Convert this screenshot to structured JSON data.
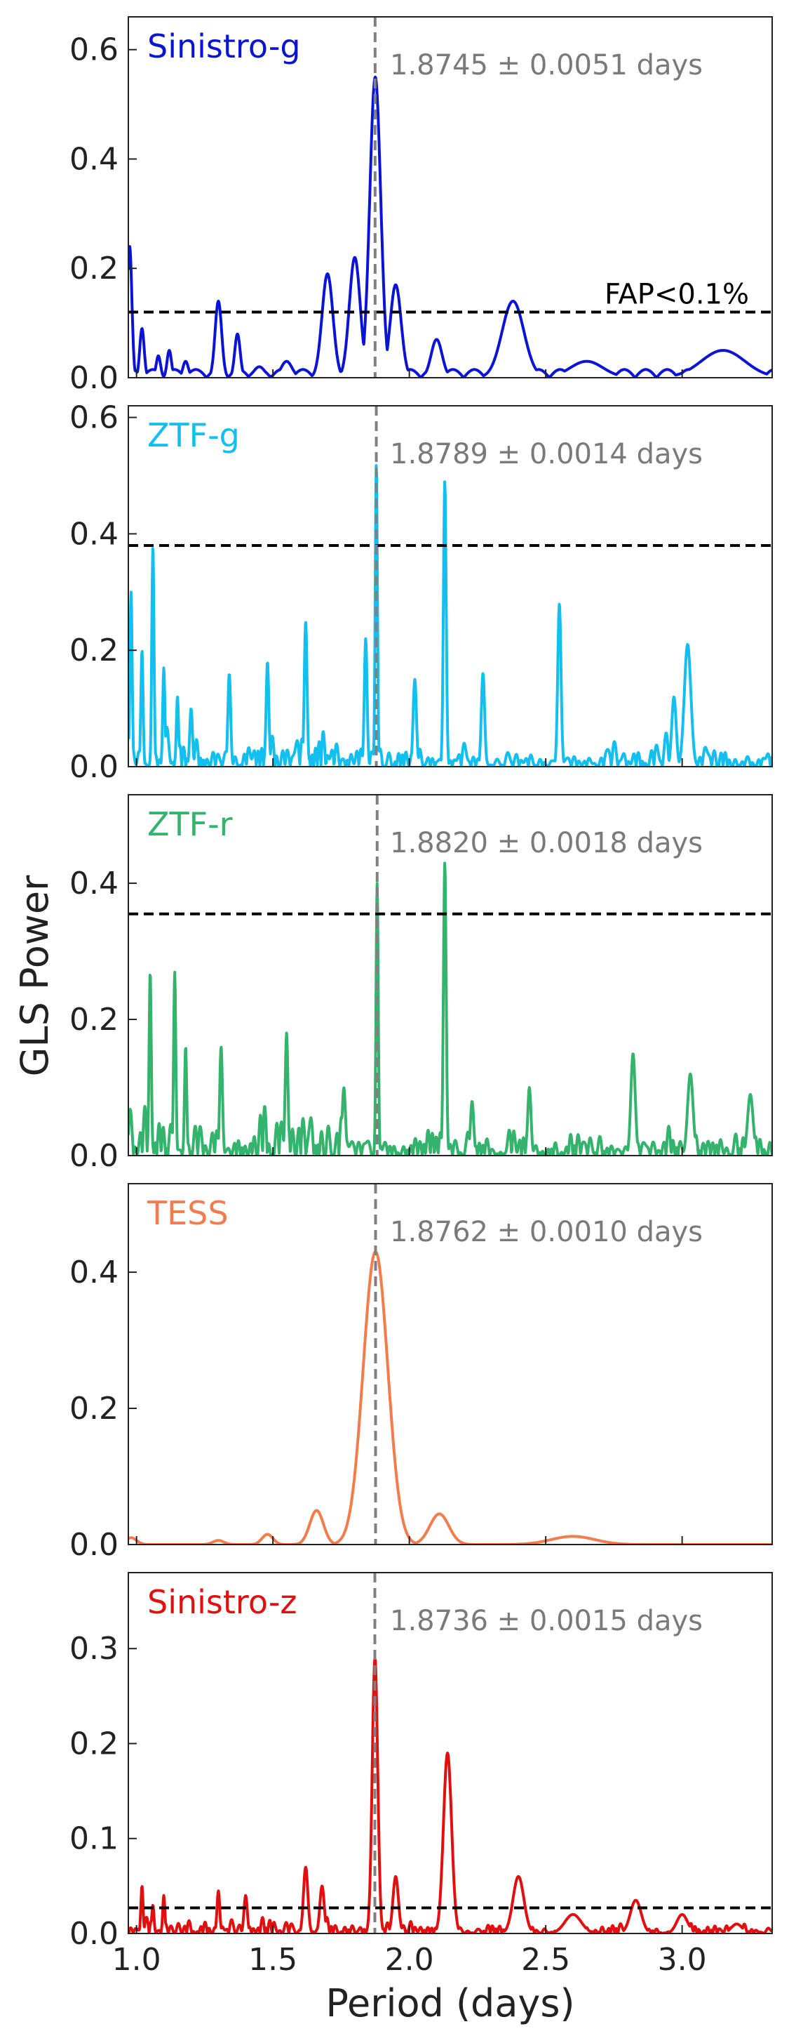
{
  "chart_data": {
    "type": "line",
    "xlabel": "Period (days)",
    "ylabel": "GLS Power",
    "xlim": [
      0.97,
      3.33
    ],
    "x_ticks": [
      "1.0",
      "1.5",
      "2.0",
      "2.5",
      "3.0"
    ],
    "x_tick_values": [
      1.0,
      1.5,
      2.0,
      2.5,
      3.0
    ],
    "panels": [
      {
        "name": "Sinistro-g",
        "color": "#0b14d4",
        "period_text": "1.8745 ± 0.0051 days",
        "period": 1.8745,
        "fap_label": "FAP<0.1%",
        "fap": 0.12,
        "ylim": [
          0,
          0.66
        ],
        "y_ticks": [
          "0.0",
          "0.2",
          "0.4",
          "0.6"
        ],
        "y_tick_values": [
          0,
          0.2,
          0.4,
          0.6
        ],
        "peaks": [
          [
            0.975,
            0.24,
            0.008
          ],
          [
            1.02,
            0.09,
            0.008
          ],
          [
            1.08,
            0.04,
            0.008
          ],
          [
            1.12,
            0.05,
            0.008
          ],
          [
            1.18,
            0.03,
            0.01
          ],
          [
            1.3,
            0.14,
            0.012
          ],
          [
            1.37,
            0.08,
            0.01
          ],
          [
            1.45,
            0.02,
            0.02
          ],
          [
            1.55,
            0.03,
            0.02
          ],
          [
            1.7,
            0.19,
            0.02
          ],
          [
            1.8,
            0.22,
            0.02
          ],
          [
            1.875,
            0.55,
            0.02
          ],
          [
            1.95,
            0.17,
            0.02
          ],
          [
            2.1,
            0.07,
            0.02
          ],
          [
            2.38,
            0.14,
            0.04
          ],
          [
            2.65,
            0.03,
            0.06
          ],
          [
            3.15,
            0.05,
            0.08
          ]
        ]
      },
      {
        "name": "ZTF-g",
        "color": "#12bfef",
        "period_text": "1.8789 ± 0.0014 days",
        "period": 1.8789,
        "fap": 0.38,
        "ylim": [
          0,
          0.62
        ],
        "y_ticks": [
          "0.0",
          "0.2",
          "0.4",
          "0.6"
        ],
        "y_tick_values": [
          0,
          0.2,
          0.4,
          0.6
        ],
        "peaks": [
          [
            0.98,
            0.3,
            0.004
          ],
          [
            1.02,
            0.2,
            0.004
          ],
          [
            1.06,
            0.38,
            0.004
          ],
          [
            1.1,
            0.17,
            0.004
          ],
          [
            1.15,
            0.12,
            0.004
          ],
          [
            1.2,
            0.1,
            0.005
          ],
          [
            1.34,
            0.16,
            0.005
          ],
          [
            1.48,
            0.18,
            0.005
          ],
          [
            1.62,
            0.25,
            0.005
          ],
          [
            1.84,
            0.22,
            0.005
          ],
          [
            1.879,
            0.52,
            0.004
          ],
          [
            2.02,
            0.15,
            0.006
          ],
          [
            2.13,
            0.49,
            0.005
          ],
          [
            2.27,
            0.16,
            0.006
          ],
          [
            2.55,
            0.28,
            0.006
          ],
          [
            3.02,
            0.21,
            0.012
          ],
          [
            2.97,
            0.12,
            0.008
          ]
        ]
      },
      {
        "name": "ZTF-r",
        "color": "#33b36b",
        "period_text": "1.8820 ± 0.0018 days",
        "period": 1.882,
        "fap": 0.355,
        "ylim": [
          0,
          0.53
        ],
        "y_ticks": [
          "0.0",
          "0.2",
          "0.4"
        ],
        "y_tick_values": [
          0,
          0.2,
          0.4
        ],
        "peaks": [
          [
            1.05,
            0.27,
            0.004
          ],
          [
            1.14,
            0.27,
            0.004
          ],
          [
            1.18,
            0.16,
            0.004
          ],
          [
            1.31,
            0.16,
            0.005
          ],
          [
            1.55,
            0.18,
            0.005
          ],
          [
            1.76,
            0.1,
            0.006
          ],
          [
            1.882,
            0.4,
            0.004
          ],
          [
            2.13,
            0.43,
            0.005
          ],
          [
            2.23,
            0.08,
            0.006
          ],
          [
            2.44,
            0.1,
            0.006
          ],
          [
            2.82,
            0.15,
            0.008
          ],
          [
            3.03,
            0.12,
            0.01
          ],
          [
            3.25,
            0.09,
            0.01
          ]
        ]
      },
      {
        "name": "TESS",
        "color": "#f27c4c",
        "period_text": "1.8762 ± 0.0010 days",
        "period": 1.8762,
        "ylim": [
          0,
          0.53
        ],
        "y_ticks": [
          "0.0",
          "0.2",
          "0.4"
        ],
        "y_tick_values": [
          0,
          0.2,
          0.4
        ],
        "peaks": [
          [
            1.876,
            0.43,
            0.045
          ],
          [
            2.11,
            0.045,
            0.035
          ],
          [
            1.66,
            0.05,
            0.025
          ],
          [
            1.48,
            0.015,
            0.02
          ],
          [
            1.3,
            0.006,
            0.02
          ],
          [
            2.6,
            0.012,
            0.08
          ],
          [
            0.98,
            0.01,
            0.02
          ]
        ]
      },
      {
        "name": "Sinistro-z",
        "color": "#e10f0f",
        "period_text": "1.8736 ± 0.0015 days",
        "period": 1.8736,
        "fap": 0.027,
        "ylim": [
          0,
          0.38
        ],
        "y_ticks": [
          "0.0",
          "0.1",
          "0.2",
          "0.3"
        ],
        "y_tick_values": [
          0,
          0.1,
          0.2,
          0.3
        ],
        "peaks": [
          [
            1.02,
            0.05,
            0.004
          ],
          [
            1.06,
            0.03,
            0.004
          ],
          [
            1.1,
            0.04,
            0.004
          ],
          [
            1.3,
            0.045,
            0.005
          ],
          [
            1.4,
            0.04,
            0.006
          ],
          [
            1.62,
            0.07,
            0.008
          ],
          [
            1.68,
            0.05,
            0.008
          ],
          [
            1.874,
            0.29,
            0.01
          ],
          [
            1.95,
            0.06,
            0.01
          ],
          [
            2.14,
            0.19,
            0.015
          ],
          [
            2.4,
            0.06,
            0.02
          ],
          [
            2.6,
            0.02,
            0.03
          ],
          [
            2.83,
            0.035,
            0.02
          ],
          [
            3.0,
            0.02,
            0.02
          ],
          [
            3.2,
            0.01,
            0.02
          ]
        ]
      }
    ]
  }
}
